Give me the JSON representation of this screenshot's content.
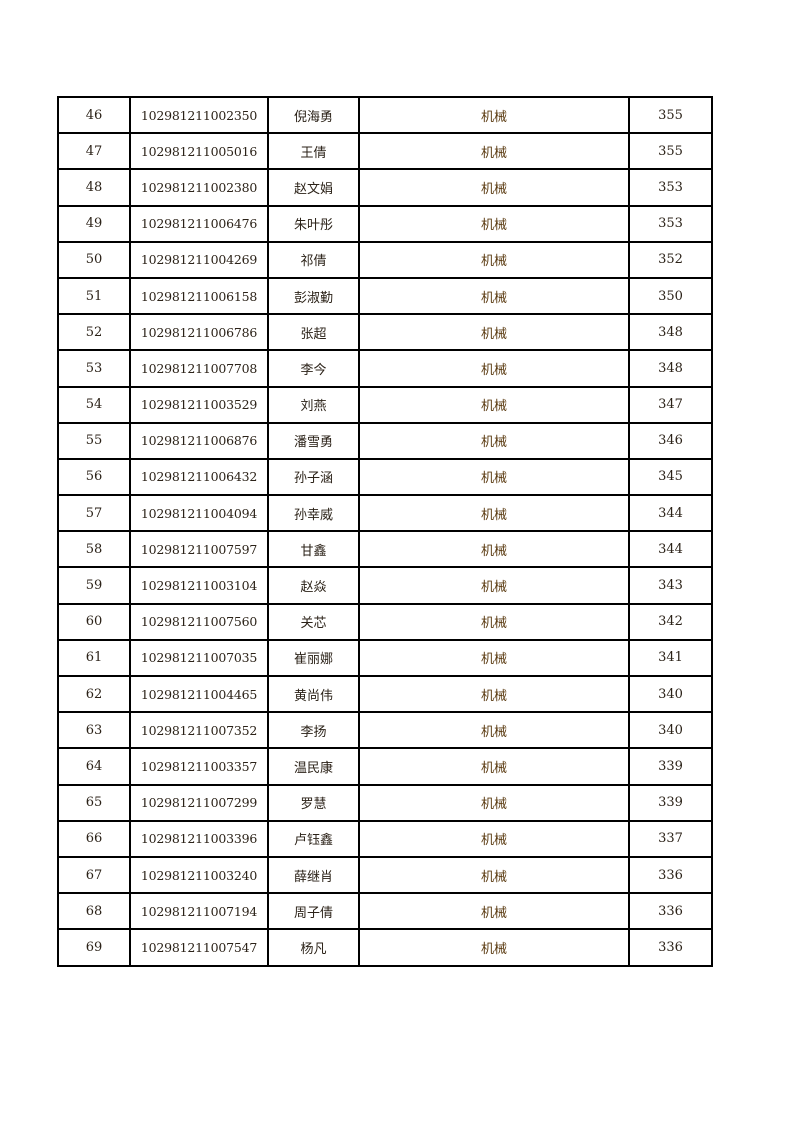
{
  "table": {
    "rows": [
      {
        "no": "46",
        "id": "102981211002350",
        "name": "倪海勇",
        "major": "机械",
        "score": "355"
      },
      {
        "no": "47",
        "id": "102981211005016",
        "name": "王倩",
        "major": "机械",
        "score": "355"
      },
      {
        "no": "48",
        "id": "102981211002380",
        "name": "赵文娟",
        "major": "机械",
        "score": "353"
      },
      {
        "no": "49",
        "id": "102981211006476",
        "name": "朱叶彤",
        "major": "机械",
        "score": "353"
      },
      {
        "no": "50",
        "id": "102981211004269",
        "name": "祁倩",
        "major": "机械",
        "score": "352"
      },
      {
        "no": "51",
        "id": "102981211006158",
        "name": "彭淑勤",
        "major": "机械",
        "score": "350"
      },
      {
        "no": "52",
        "id": "102981211006786",
        "name": "张超",
        "major": "机械",
        "score": "348"
      },
      {
        "no": "53",
        "id": "102981211007708",
        "name": "李今",
        "major": "机械",
        "score": "348"
      },
      {
        "no": "54",
        "id": "102981211003529",
        "name": "刘燕",
        "major": "机械",
        "score": "347"
      },
      {
        "no": "55",
        "id": "102981211006876",
        "name": "潘雪勇",
        "major": "机械",
        "score": "346"
      },
      {
        "no": "56",
        "id": "102981211006432",
        "name": "孙子涵",
        "major": "机械",
        "score": "345"
      },
      {
        "no": "57",
        "id": "102981211004094",
        "name": "孙幸威",
        "major": "机械",
        "score": "344"
      },
      {
        "no": "58",
        "id": "102981211007597",
        "name": "甘鑫",
        "major": "机械",
        "score": "344"
      },
      {
        "no": "59",
        "id": "102981211003104",
        "name": "赵焱",
        "major": "机械",
        "score": "343"
      },
      {
        "no": "60",
        "id": "102981211007560",
        "name": "关芯",
        "major": "机械",
        "score": "342"
      },
      {
        "no": "61",
        "id": "102981211007035",
        "name": "崔丽娜",
        "major": "机械",
        "score": "341"
      },
      {
        "no": "62",
        "id": "102981211004465",
        "name": "黄尚伟",
        "major": "机械",
        "score": "340"
      },
      {
        "no": "63",
        "id": "102981211007352",
        "name": "李扬",
        "major": "机械",
        "score": "340"
      },
      {
        "no": "64",
        "id": "102981211003357",
        "name": "温民康",
        "major": "机械",
        "score": "339"
      },
      {
        "no": "65",
        "id": "102981211007299",
        "name": "罗慧",
        "major": "机械",
        "score": "339"
      },
      {
        "no": "66",
        "id": "102981211003396",
        "name": "卢钰鑫",
        "major": "机械",
        "score": "337"
      },
      {
        "no": "67",
        "id": "102981211003240",
        "name": "薛继肖",
        "major": "机械",
        "score": "336"
      },
      {
        "no": "68",
        "id": "102981211007194",
        "name": "周子倩",
        "major": "机械",
        "score": "336"
      },
      {
        "no": "69",
        "id": "102981211007547",
        "name": "杨凡",
        "major": "机械",
        "score": "336"
      }
    ]
  }
}
